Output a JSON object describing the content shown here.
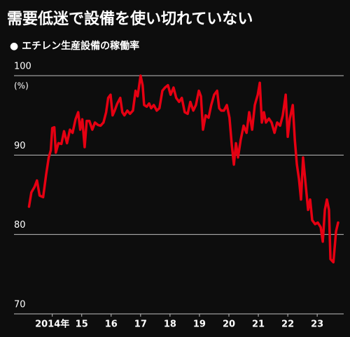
{
  "chart_data": {
    "type": "line",
    "title": "需要低迷で設備を使い切れていない",
    "subtitle": "● エチレン生産設備の稼働率",
    "y_unit": "(%)",
    "xlim": [
      2012.7,
      2023.9
    ],
    "ylim": [
      70,
      100
    ],
    "yticks": [
      70,
      80,
      90,
      100
    ],
    "xticks": [
      {
        "value": 2014,
        "label": "2014年"
      },
      {
        "value": 2015,
        "label": "15"
      },
      {
        "value": 2016,
        "label": "16"
      },
      {
        "value": 2017,
        "label": "17"
      },
      {
        "value": 2018,
        "label": "18"
      },
      {
        "value": 2019,
        "label": "19"
      },
      {
        "value": 2020,
        "label": "20"
      },
      {
        "value": 2021,
        "label": "21"
      },
      {
        "value": 2022,
        "label": "22"
      },
      {
        "value": 2023,
        "label": "23"
      }
    ],
    "grid": true,
    "series": [
      {
        "color": "#e60012",
        "x": [
          2013.21,
          2013.29,
          2013.4,
          2013.48,
          2013.57,
          2013.69,
          2013.79,
          2013.88,
          2013.95,
          2014.0,
          2014.07,
          2014.12,
          2014.21,
          2014.31,
          2014.4,
          2014.5,
          2014.6,
          2014.69,
          2014.79,
          2014.88,
          2014.95,
          2015.02,
          2015.1,
          2015.17,
          2015.26,
          2015.36,
          2015.45,
          2015.55,
          2015.64,
          2015.74,
          2015.83,
          2015.9,
          2015.98,
          2016.05,
          2016.12,
          2016.21,
          2016.31,
          2016.38,
          2016.45,
          2016.55,
          2016.64,
          2016.74,
          2016.83,
          2016.9,
          2017.0,
          2017.07,
          2017.12,
          2017.21,
          2017.29,
          2017.36,
          2017.45,
          2017.55,
          2017.64,
          2017.74,
          2017.83,
          2017.93,
          2018.02,
          2018.12,
          2018.21,
          2018.31,
          2018.4,
          2018.5,
          2018.6,
          2018.69,
          2018.79,
          2018.88,
          2018.98,
          2019.05,
          2019.12,
          2019.21,
          2019.31,
          2019.4,
          2019.5,
          2019.6,
          2019.67,
          2019.74,
          2019.83,
          2019.93,
          2020.02,
          2020.1,
          2020.17,
          2020.24,
          2020.31,
          2020.4,
          2020.5,
          2020.6,
          2020.69,
          2020.79,
          2020.88,
          2020.98,
          2021.05,
          2021.12,
          2021.19,
          2021.26,
          2021.36,
          2021.45,
          2021.55,
          2021.64,
          2021.74,
          2021.83,
          2021.93,
          2022.0,
          2022.07,
          2022.17,
          2022.24,
          2022.31,
          2022.38,
          2022.45,
          2022.52,
          2022.6,
          2022.69,
          2022.76,
          2022.83,
          2022.93,
          2023.02,
          2023.12,
          2023.19,
          2023.26,
          2023.33,
          2023.4,
          2023.45,
          2023.55,
          2023.64,
          2023.71
        ],
        "values": [
          83.5,
          85.3,
          86,
          86.8,
          84.9,
          84.7,
          87.5,
          89.7,
          90.6,
          93.4,
          93.5,
          90.3,
          91.5,
          91.4,
          93,
          91.5,
          93.2,
          92.8,
          94.5,
          95.4,
          93.2,
          94.5,
          91,
          94.3,
          94.3,
          93.2,
          94.1,
          93.8,
          93.7,
          94.1,
          95.4,
          97.2,
          97.6,
          95,
          95.6,
          96.5,
          97.2,
          95.4,
          95,
          95.6,
          95.2,
          95.6,
          98.1,
          97.4,
          100,
          98.8,
          96.3,
          96.1,
          96.5,
          95.9,
          96.3,
          95.6,
          95.9,
          98.1,
          98.5,
          98.8,
          97.6,
          98.5,
          97.2,
          96.7,
          97.2,
          95.4,
          95.2,
          96.7,
          95.6,
          96.3,
          98.1,
          97.4,
          93.2,
          95,
          94.7,
          96.3,
          97.6,
          98.1,
          95.9,
          95.6,
          95.6,
          96.3,
          94.7,
          91.2,
          88.8,
          91.5,
          89.7,
          91.9,
          93.7,
          92.8,
          95.4,
          93.2,
          96.3,
          97.6,
          99.1,
          94.1,
          95.4,
          94.1,
          94.6,
          94.1,
          92.8,
          94.1,
          93.7,
          95,
          97.6,
          92.3,
          94.6,
          96.3,
          91.9,
          88.8,
          87,
          84.4,
          89.7,
          86.6,
          83.1,
          84.4,
          81.8,
          81.3,
          81.5,
          80.9,
          79.1,
          83.1,
          84.4,
          83.1,
          76.9,
          76.5,
          80.4,
          81.5
        ]
      }
    ]
  }
}
